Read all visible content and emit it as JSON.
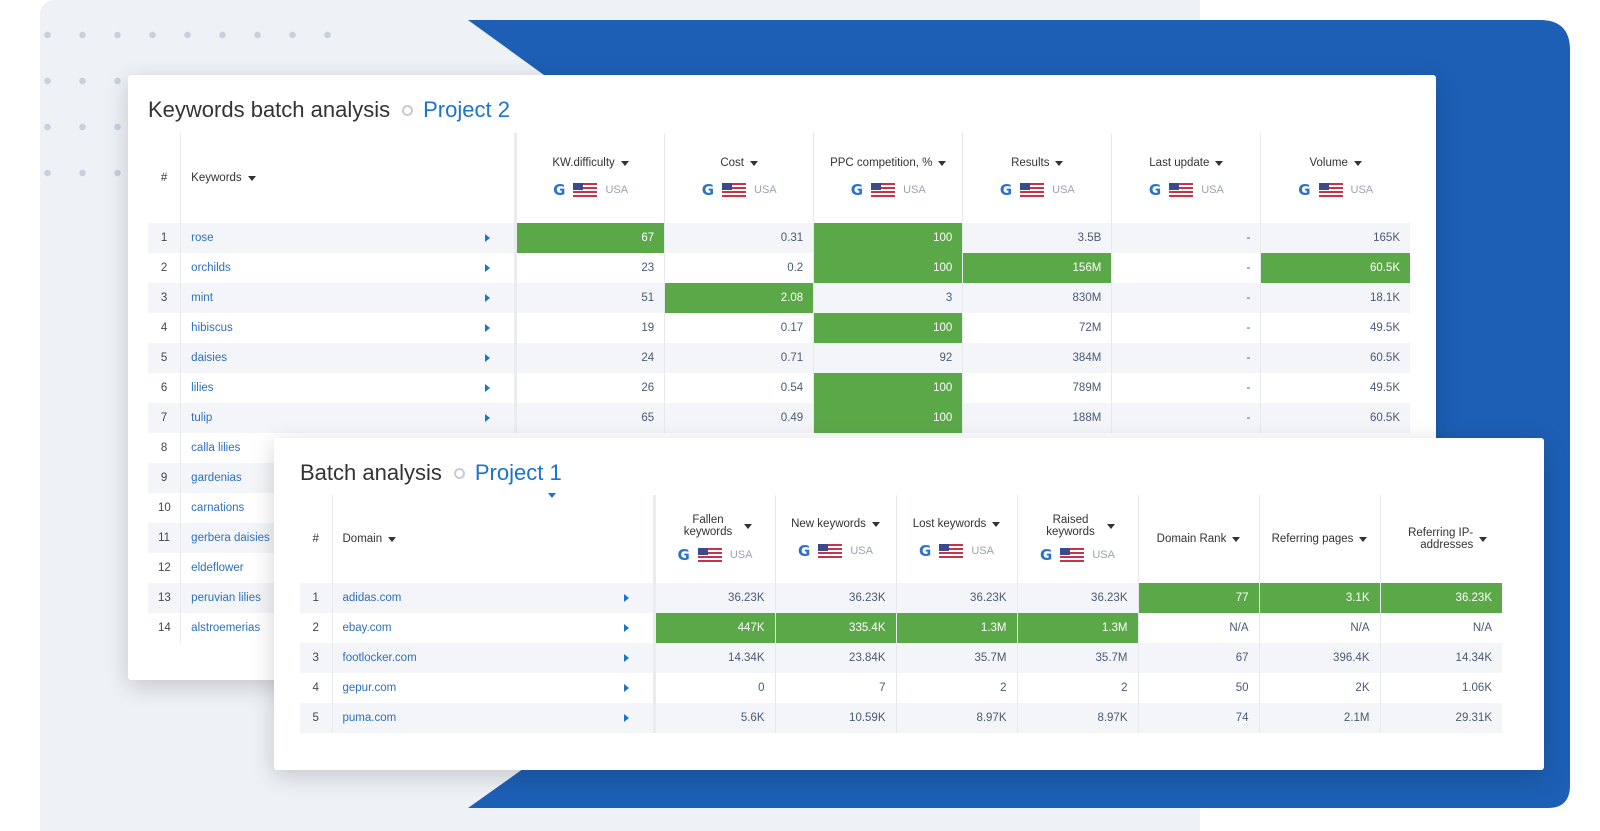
{
  "kw_panel": {
    "title": "Keywords batch analysis",
    "project": "Project 2",
    "headers": {
      "idx": "#",
      "keywords": "Keywords",
      "kw_difficulty": "KW.difficulty",
      "cost": "Cost",
      "ppc": "PPC competition, %",
      "results": "Results",
      "last_update": "Last update",
      "volume": "Volume",
      "region": "USA"
    },
    "rows": [
      {
        "n": "1",
        "kw": "rose",
        "diff": "67",
        "cost": "0.31",
        "ppc": "100",
        "res": "3.5B",
        "upd": "-",
        "vol": "165K"
      },
      {
        "n": "2",
        "kw": "orchilds",
        "diff": "23",
        "cost": "0.2",
        "ppc": "100",
        "res": "156M",
        "upd": "-",
        "vol": "60.5K"
      },
      {
        "n": "3",
        "kw": "mint",
        "diff": "51",
        "cost": "2.08",
        "ppc": "3",
        "res": "830M",
        "upd": "-",
        "vol": "18.1K"
      },
      {
        "n": "4",
        "kw": "hibiscus",
        "diff": "19",
        "cost": "0.17",
        "ppc": "100",
        "res": "72M",
        "upd": "-",
        "vol": "49.5K"
      },
      {
        "n": "5",
        "kw": "daisies",
        "diff": "24",
        "cost": "0.71",
        "ppc": "92",
        "res": "384M",
        "upd": "-",
        "vol": "60.5K"
      },
      {
        "n": "6",
        "kw": "lilies",
        "diff": "26",
        "cost": "0.54",
        "ppc": "100",
        "res": "789M",
        "upd": "-",
        "vol": "49.5K"
      },
      {
        "n": "7",
        "kw": "tulip",
        "diff": "65",
        "cost": "0.49",
        "ppc": "100",
        "res": "188M",
        "upd": "-",
        "vol": "60.5K"
      },
      {
        "n": "8",
        "kw": "calla lilies"
      },
      {
        "n": "9",
        "kw": "gardenias"
      },
      {
        "n": "10",
        "kw": "carnations"
      },
      {
        "n": "11",
        "kw": "gerbera daisies"
      },
      {
        "n": "12",
        "kw": "eldeflower"
      },
      {
        "n": "13",
        "kw": "peruvian lilies"
      },
      {
        "n": "14",
        "kw": "alstroemerias"
      }
    ]
  },
  "ba_panel": {
    "title": "Batch analysis",
    "project": "Project 1",
    "headers": {
      "idx": "#",
      "domain": "Domain",
      "fallen": "Fallen keywords",
      "new": "New keywords",
      "lost": "Lost keywords",
      "raised": "Raised keywords",
      "rank": "Domain Rank",
      "ref_pages": "Referring pages",
      "ref_ip": "Referring IP-addresses",
      "region": "USA"
    },
    "rows": [
      {
        "n": "1",
        "domain": "adidas.com",
        "fallen": "36.23K",
        "new": "36.23K",
        "lost": "36.23K",
        "raised": "36.23K",
        "rank": "77",
        "pages": "3.1K",
        "ip": "36.23K"
      },
      {
        "n": "2",
        "domain": "ebay.com",
        "fallen": "447K",
        "new": "335.4K",
        "lost": "1.3M",
        "raised": "1.3M",
        "rank": "N/A",
        "pages": "N/A",
        "ip": "N/A"
      },
      {
        "n": "3",
        "domain": "footlocker.com",
        "fallen": "14.34K",
        "new": "23.84K",
        "lost": "35.7M",
        "raised": "35.7M",
        "rank": "67",
        "pages": "396.4K",
        "ip": "14.34K"
      },
      {
        "n": "4",
        "domain": "gepur.com",
        "fallen": "0",
        "new": "7",
        "lost": "2",
        "raised": "2",
        "rank": "50",
        "pages": "2K",
        "ip": "1.06K"
      },
      {
        "n": "5",
        "domain": "puma.com",
        "fallen": "5.6K",
        "new": "10.59K",
        "lost": "8.97K",
        "raised": "8.97K",
        "rank": "74",
        "pages": "2.1M",
        "ip": "29.31K"
      }
    ]
  },
  "colors": {
    "accent": "#1a74c9",
    "highlight": "#5ba849",
    "blue_bg": "#1d5fb5"
  }
}
